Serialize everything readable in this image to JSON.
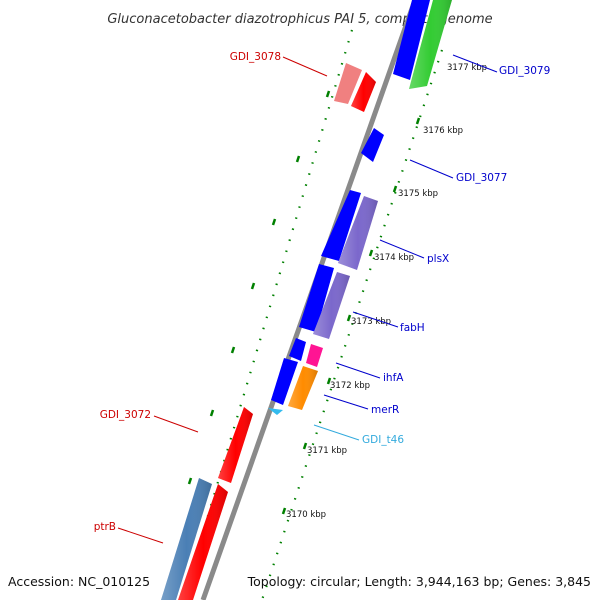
{
  "header": {
    "title": "Gluconacetobacter diazotrophicus PAI 5, complete genome"
  },
  "footer": {
    "accession": "Accession: NC_010125",
    "topology": "Topology: circular; Length: 3,944,163 bp; Genes: 3,845"
  },
  "scale_labels": [
    "3177 kbp",
    "3176 kbp",
    "3175 kbp",
    "3174 kbp",
    "3173 kbp",
    "3172 kbp",
    "3171 kbp",
    "3170 kbp"
  ],
  "gene_labels": [
    {
      "text": "GDI_3078",
      "color": "#cc0000"
    },
    {
      "text": "GDI_3079",
      "color": "#0000cc"
    },
    {
      "text": "GDI_3077",
      "color": "#0000cc"
    },
    {
      "text": "plsX",
      "color": "#0000cc"
    },
    {
      "text": "fabH",
      "color": "#0000cc"
    },
    {
      "text": "ihfA",
      "color": "#0000cc"
    },
    {
      "text": "merR",
      "color": "#0000cc"
    },
    {
      "text": "GDI_t46",
      "color": "#33aadd"
    },
    {
      "text": "GDI_3072",
      "color": "#cc0000"
    },
    {
      "text": "ptrB",
      "color": "#cc0000"
    }
  ],
  "colors": {
    "backbone": "#8a8a8a",
    "tick": "#008000",
    "forward_cds": "#ff0000",
    "reverse_cds": "#0000ff",
    "pseudo_light_red": "#f08080",
    "steel_blue": "#4a7fb5",
    "green_feature": "#33cc33",
    "lavender_feature": "#7b68cc",
    "magenta_feature": "#ff1493",
    "orange_feature": "#ff8c00",
    "trna": "#33bbee"
  }
}
